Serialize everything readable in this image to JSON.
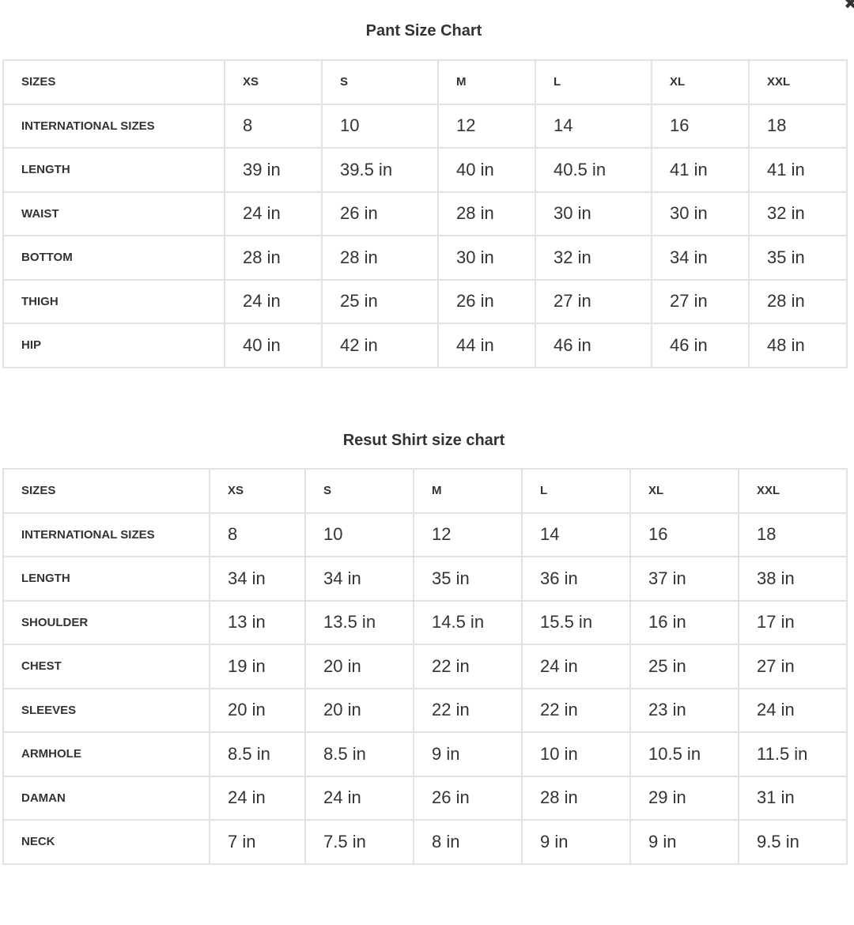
{
  "close_icon": "close-icon",
  "pant": {
    "title": "Pant Size Chart",
    "rows": [
      [
        "SIZES",
        "XS",
        "S",
        "M",
        "L",
        "XL",
        "XXL"
      ],
      [
        "INTERNATIONAL SIZES",
        "8",
        "10",
        "12",
        "14",
        "16",
        "18"
      ],
      [
        "LENGTH",
        "39 in",
        "39.5 in",
        "40 in",
        "40.5 in",
        "41 in",
        "41 in"
      ],
      [
        "WAIST",
        "24 in",
        "26 in",
        "28 in",
        "30 in",
        "30 in",
        "32 in"
      ],
      [
        "BOTTOM",
        "28 in",
        "28 in",
        "30 in",
        "32 in",
        "34 in",
        "35 in"
      ],
      [
        "THIGH",
        "24 in",
        "25 in",
        "26 in",
        "27 in",
        "27 in",
        "28 in"
      ],
      [
        "HIP",
        "40 in",
        "42 in",
        "44 in",
        "46 in",
        "46 in",
        "48 in"
      ]
    ]
  },
  "shirt": {
    "title": "Resut Shirt size chart",
    "rows": [
      [
        "SIZES",
        "XS",
        "S",
        "M",
        "L",
        "XL",
        "XXL"
      ],
      [
        "INTERNATIONAL SIZES",
        "8",
        "10",
        "12",
        "14",
        "16",
        "18"
      ],
      [
        "LENGTH",
        "34 in",
        "34 in",
        "35 in",
        "36 in",
        "37 in",
        "38 in"
      ],
      [
        "SHOULDER",
        "13 in",
        "13.5 in",
        "14.5 in",
        "15.5 in",
        "16 in",
        "17 in"
      ],
      [
        "CHEST",
        "19 in",
        "20 in",
        "22 in",
        "24 in",
        "25 in",
        "27 in"
      ],
      [
        "SLEEVES",
        "20 in",
        "20 in",
        "22 in",
        "22 in",
        "23 in",
        "24 in"
      ],
      [
        "ARMHOLE",
        "8.5 in",
        "8.5 in",
        "9 in",
        "10 in",
        "10.5 in",
        "11.5 in"
      ],
      [
        "DAMAN",
        "24 in",
        "24 in",
        "26 in",
        "28 in",
        "29 in",
        "31 in"
      ],
      [
        "NECK",
        "7 in",
        "7.5 in",
        "8 in",
        "9 in",
        "9 in",
        "9.5 in"
      ]
    ]
  }
}
